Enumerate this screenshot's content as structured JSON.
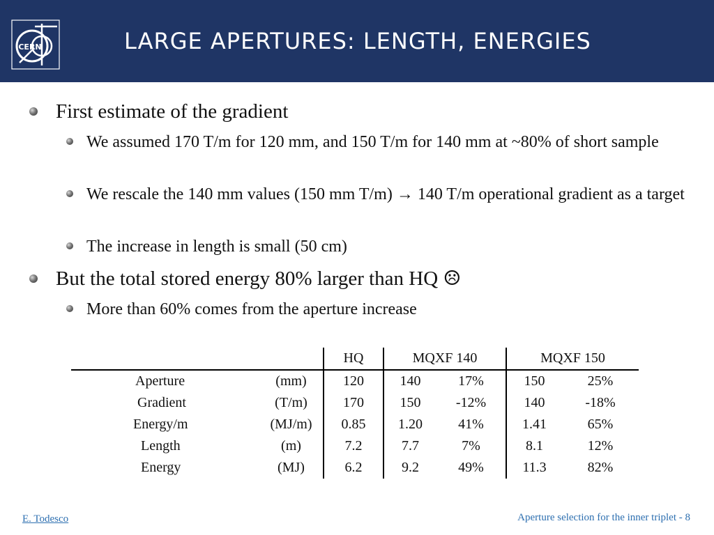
{
  "header": {
    "title": "Large apertures: length, energies",
    "logo_text": "CERN"
  },
  "bullets": [
    {
      "level": 1,
      "text": "First estimate of the gradient"
    },
    {
      "level": 2,
      "text": "We assumed 170 T/m for 120 mm, and 150 T/m for 140 mm at ~80% of short sample"
    },
    {
      "level": 2,
      "text": "We rescale the 140 mm values (150 mm T/m) → 140 T/m operational gradient as a target"
    },
    {
      "level": 2,
      "text": "The increase in length is small (50 cm)"
    },
    {
      "level": 1,
      "text": "But the total stored energy 80% larger than HQ ☹"
    },
    {
      "level": 2,
      "text": "More than 60% comes from the aperture increase"
    }
  ],
  "table": {
    "headers": [
      "HQ",
      "MQXF 140",
      "MQXF 150"
    ],
    "rows": [
      [
        "Aperture",
        "(mm)",
        "120",
        "140",
        "17%",
        "150",
        "25%"
      ],
      [
        "Gradient",
        "(T/m)",
        "170",
        "150",
        "-12%",
        "140",
        "-18%"
      ],
      [
        "Energy/m",
        "(MJ/m)",
        "0.85",
        "1.20",
        "41%",
        "1.41",
        "65%"
      ],
      [
        "Length",
        "(m)",
        "7.2",
        "7.7",
        "7%",
        "8.1",
        "12%"
      ],
      [
        "Energy",
        "(MJ)",
        "6.2",
        "9.2",
        "49%",
        "11.3",
        "82%"
      ]
    ]
  },
  "footer": {
    "author": "E. Todesco",
    "page_info": "Aperture selection for the inner triplet - 8"
  }
}
